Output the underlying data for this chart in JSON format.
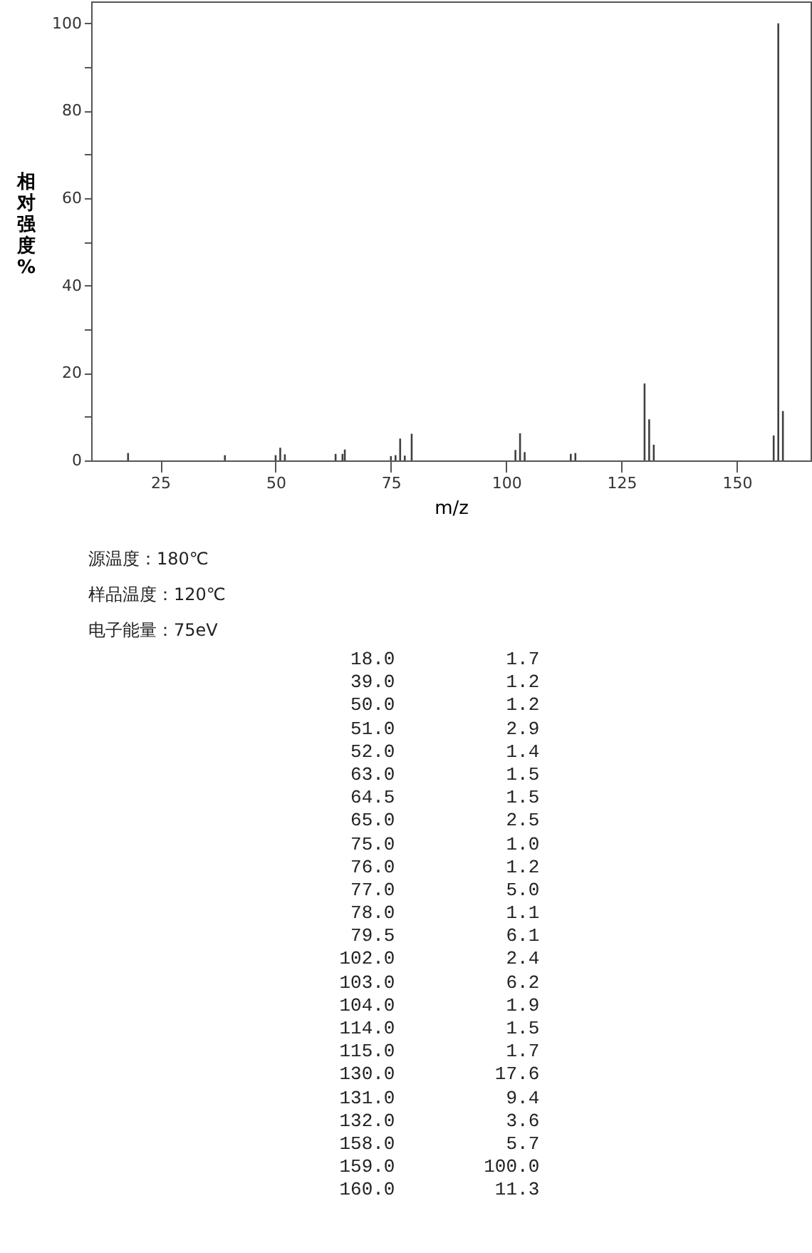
{
  "chart_data": {
    "type": "bar",
    "xlabel": "m/z",
    "ylabel": "相对强度%",
    "x": [
      18.0,
      39.0,
      50.0,
      51.0,
      52.0,
      63.0,
      64.5,
      65.0,
      75.0,
      76.0,
      77.0,
      78.0,
      79.5,
      102.0,
      103.0,
      104.0,
      114.0,
      115.0,
      130.0,
      131.0,
      132.0,
      158.0,
      159.0,
      160.0
    ],
    "values": [
      1.7,
      1.2,
      1.2,
      2.9,
      1.4,
      1.5,
      1.5,
      2.5,
      1.0,
      1.2,
      5.0,
      1.1,
      6.1,
      2.4,
      6.2,
      1.9,
      1.5,
      1.7,
      17.6,
      9.4,
      3.6,
      5.7,
      100.0,
      11.3
    ],
    "color": "#404040",
    "xlim": [
      10,
      166
    ],
    "xticks": [
      25,
      50,
      75,
      100,
      125,
      150
    ],
    "ylim": [
      0,
      105
    ],
    "yticks": [
      0,
      {
        "value": 10,
        "label": null
      },
      20,
      {
        "value": 30,
        "label": null
      },
      40,
      {
        "value": 50,
        "label": null
      },
      60,
      {
        "value": 70,
        "label": null
      },
      80,
      {
        "value": 90,
        "label": null
      },
      100
    ],
    "grid": false,
    "annotations": [
      "源温度：180℃",
      "样品温度：120℃",
      "电子能量：75eV",
      "18.0 1.7",
      "39.0 1.2",
      "50.0 1.2",
      "51.0 2.9",
      "52.0 1.4",
      "63.0 1.5",
      "64.5 1.5",
      "65.0 2.5",
      "75.0 1.0",
      "76.0 1.2",
      "77.0 5.0",
      "78.0 1.1",
      "79.5 6.1",
      "102.0 2.4",
      "103.0 6.2",
      "104.0 1.9",
      "114.0 1.5",
      "115.0 1.7",
      "130.0 17.6",
      "131.0 9.4",
      "132.0 3.6",
      "158.0 5.7",
      "159.0 100.0",
      "160.0 11.3"
    ]
  }
}
